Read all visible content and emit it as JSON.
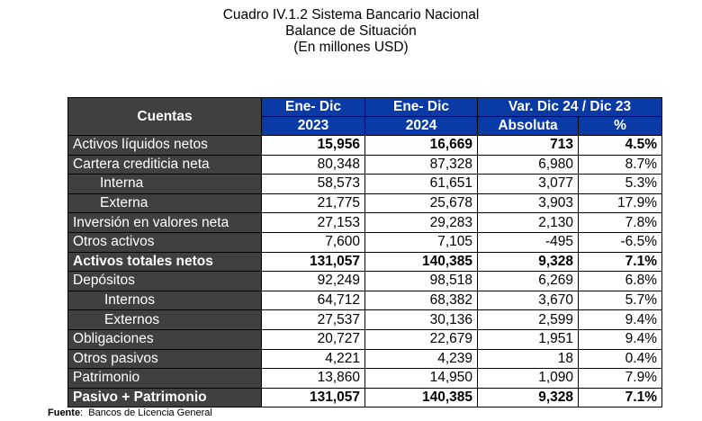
{
  "title": {
    "line1": "Cuadro IV.1.2 Sistema Bancario Nacional",
    "line2": "Balance de Situación",
    "line3": "(En millones USD)"
  },
  "colors": {
    "header_blue": "#0a3aa6",
    "label_gray": "#404040"
  },
  "table": {
    "headers": {
      "cuentas": "Cuentas",
      "ene_dic_1": "Ene- Dic",
      "ene_dic_2": "Ene- Dic",
      "var": "Var. Dic 24 / Dic 23",
      "y2023": "2023",
      "y2024": "2024",
      "absoluta": "Absoluta",
      "pct": "%"
    },
    "rows": [
      {
        "label": "Activos líquidos netos",
        "v2023": "15,956",
        "v2024": "16,669",
        "abs": "713",
        "pct": "4.5%",
        "indent": 0,
        "bold_label": false,
        "bold_values": true
      },
      {
        "label": "Cartera crediticia neta",
        "v2023": "80,348",
        "v2024": "87,328",
        "abs": "6,980",
        "pct": "8.7%",
        "indent": 0,
        "bold_label": false,
        "bold_values": false
      },
      {
        "label": "Interna",
        "v2023": "58,573",
        "v2024": "61,651",
        "abs": "3,077",
        "pct": "5.3%",
        "indent": 1,
        "bold_label": false,
        "bold_values": false
      },
      {
        "label": "Externa",
        "v2023": "21,775",
        "v2024": "25,678",
        "abs": "3,903",
        "pct": "17.9%",
        "indent": 1,
        "bold_label": false,
        "bold_values": false
      },
      {
        "label": "Inversión en valores neta",
        "v2023": "27,153",
        "v2024": "29,283",
        "abs": "2,130",
        "pct": "7.8%",
        "indent": 0,
        "bold_label": false,
        "bold_values": false
      },
      {
        "label": "Otros activos",
        "v2023": "7,600",
        "v2024": "7,105",
        "abs": "-495",
        "pct": "-6.5%",
        "indent": 0,
        "bold_label": false,
        "bold_values": false
      },
      {
        "label": "Activos totales netos",
        "v2023": "131,057",
        "v2024": "140,385",
        "abs": "9,328",
        "pct": "7.1%",
        "indent": 0,
        "bold_label": true,
        "bold_values": true
      },
      {
        "label": "Depósitos",
        "v2023": "92,249",
        "v2024": "98,518",
        "abs": "6,269",
        "pct": "6.8%",
        "indent": 0,
        "bold_label": false,
        "bold_values": false
      },
      {
        "label": "Internos",
        "v2023": "64,712",
        "v2024": "68,382",
        "abs": "3,670",
        "pct": "5.7%",
        "indent": 2,
        "bold_label": false,
        "bold_values": false
      },
      {
        "label": "Externos",
        "v2023": "27,537",
        "v2024": "30,136",
        "abs": "2,599",
        "pct": "9.4%",
        "indent": 2,
        "bold_label": false,
        "bold_values": false
      },
      {
        "label": "Obligaciones",
        "v2023": "20,727",
        "v2024": "22,679",
        "abs": "1,951",
        "pct": "9.4%",
        "indent": 0,
        "bold_label": false,
        "bold_values": false
      },
      {
        "label": "Otros pasivos",
        "v2023": "4,221",
        "v2024": "4,239",
        "abs": "18",
        "pct": "0.4%",
        "indent": 0,
        "bold_label": false,
        "bold_values": false
      },
      {
        "label": "Patrimonio",
        "v2023": "13,860",
        "v2024": "14,950",
        "abs": "1,090",
        "pct": "7.9%",
        "indent": 0,
        "bold_label": false,
        "bold_values": false
      },
      {
        "label": "Pasivo + Patrimonio",
        "v2023": "131,057",
        "v2024": "140,385",
        "abs": "9,328",
        "pct": "7.1%",
        "indent": 0,
        "bold_label": true,
        "bold_values": true
      }
    ]
  },
  "source": {
    "label": "Fuente",
    "text": "Bancos de Licencia General"
  }
}
